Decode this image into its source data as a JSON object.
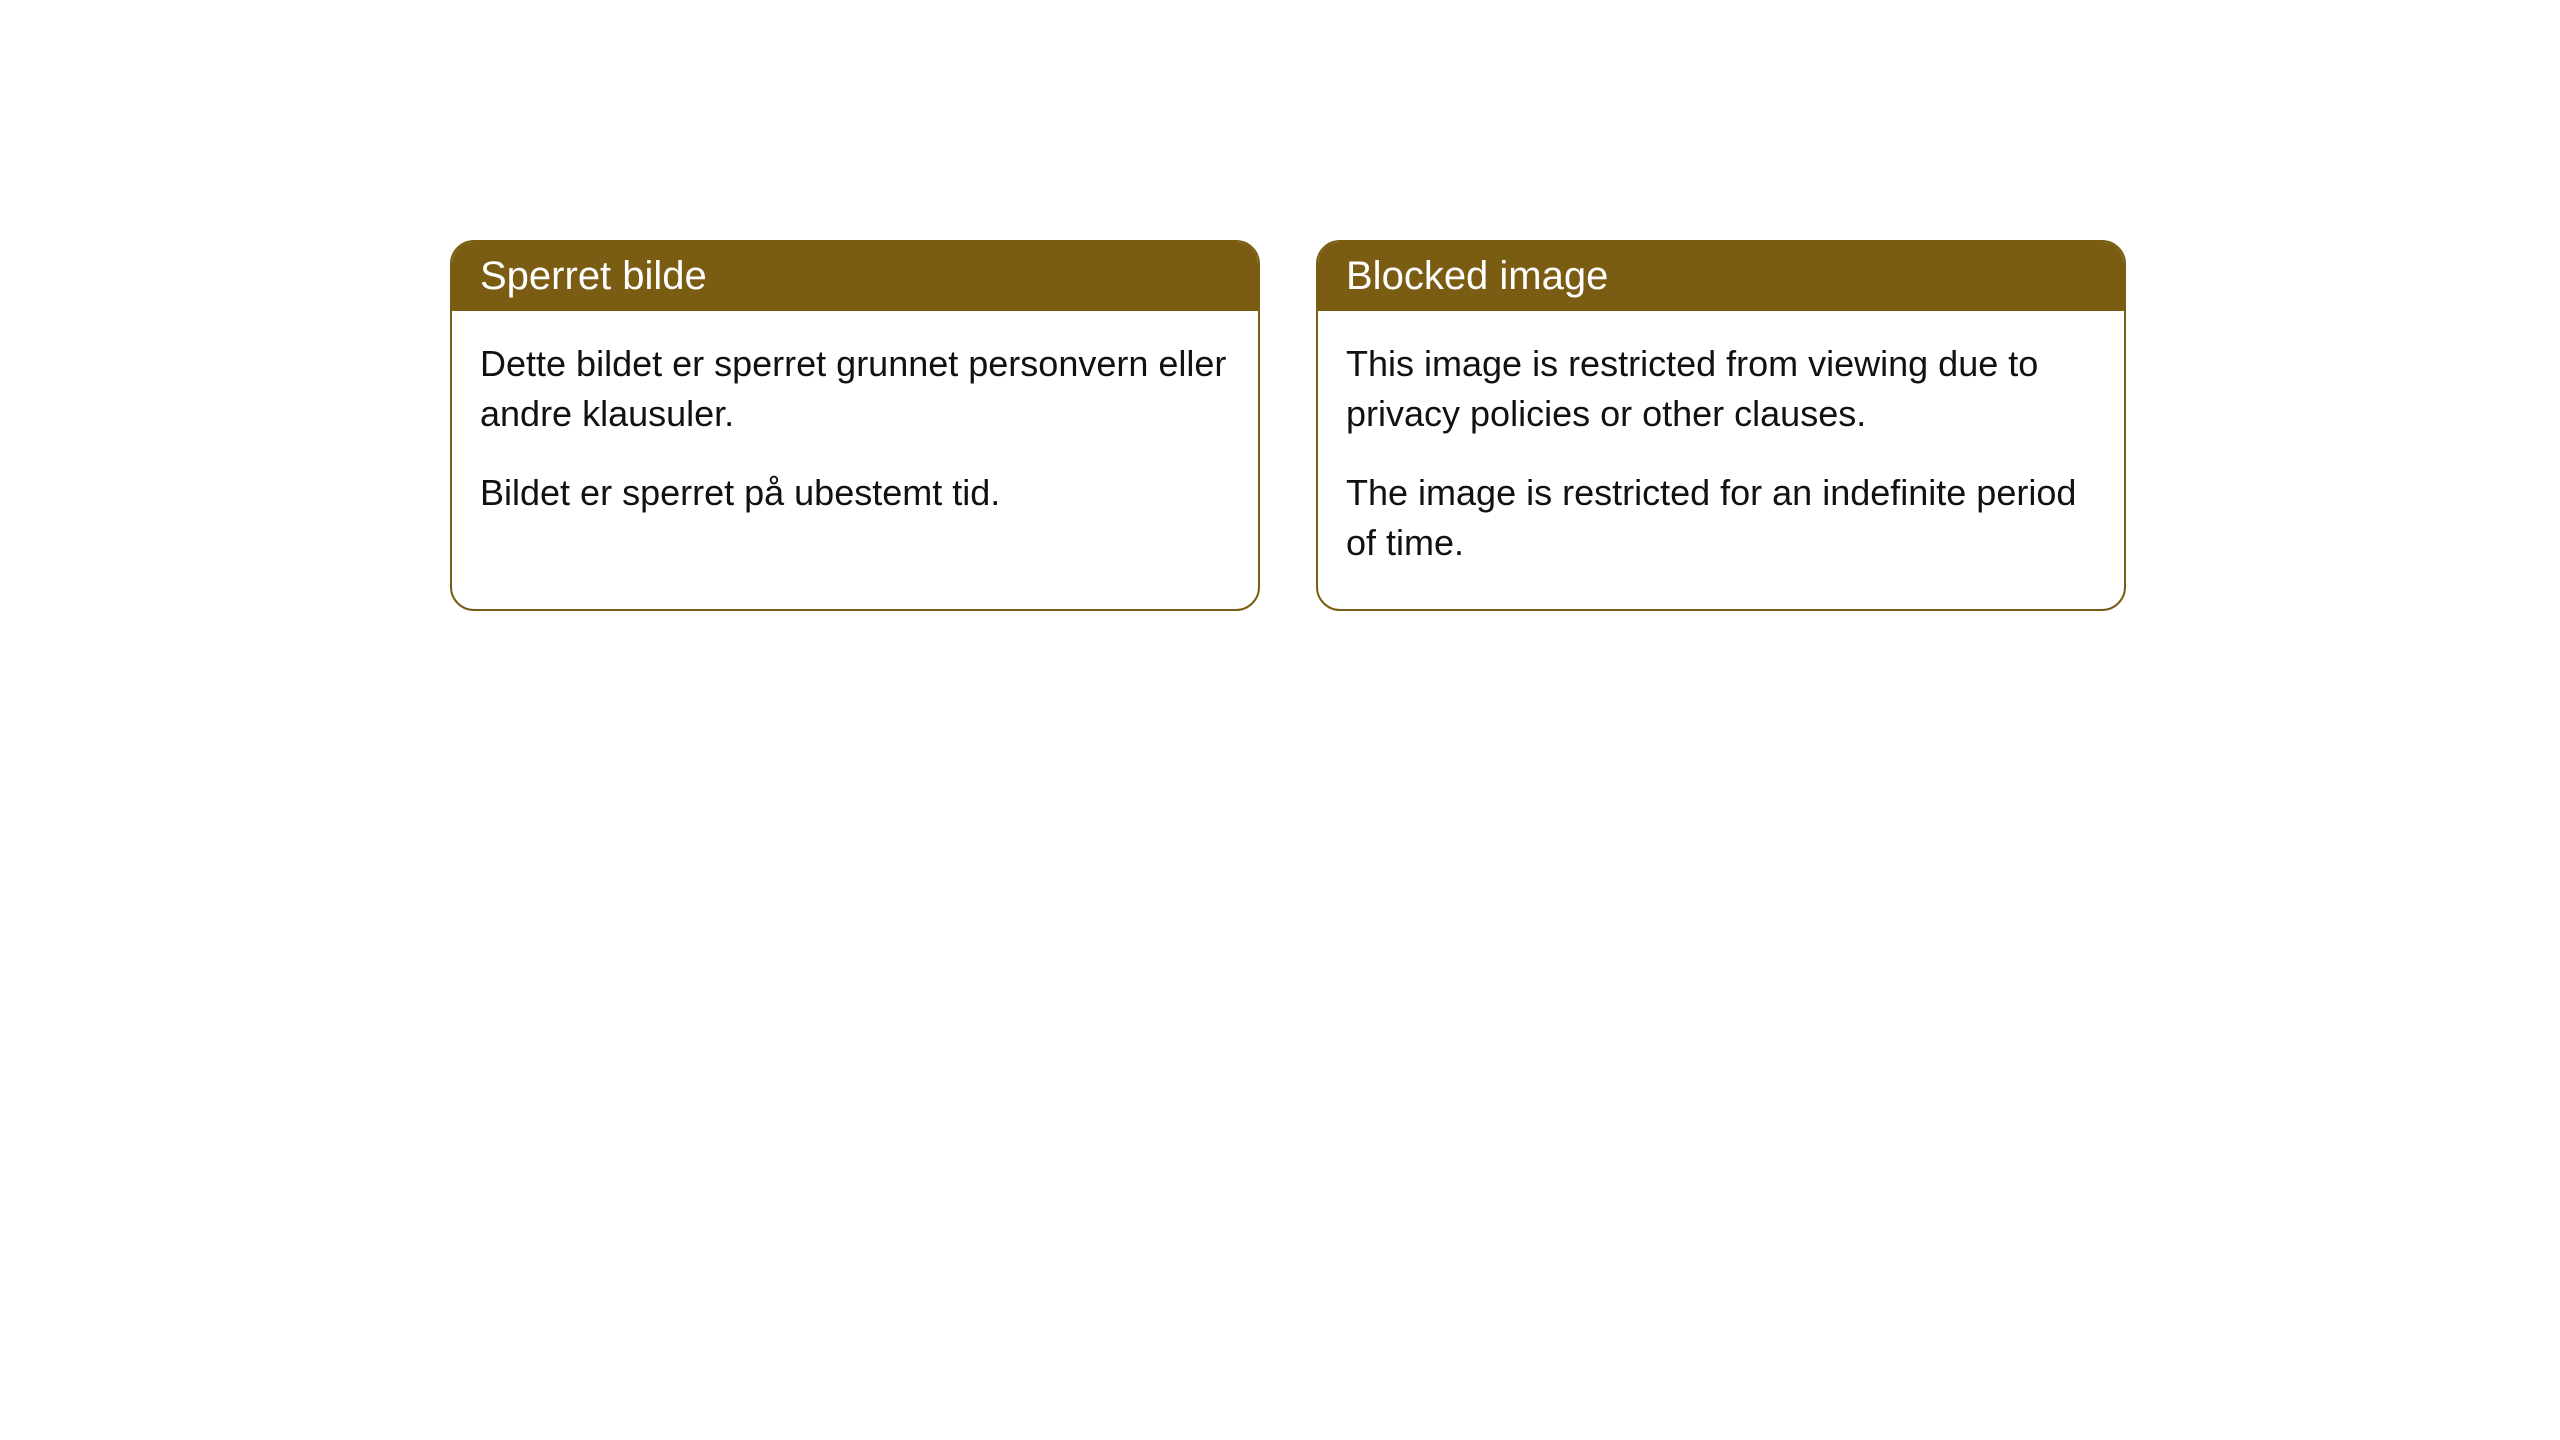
{
  "cards": [
    {
      "title": "Sperret bilde",
      "paragraph1": "Dette bildet er sperret grunnet personvern eller andre klausuler.",
      "paragraph2": "Bildet er sperret på ubestemt tid."
    },
    {
      "title": "Blocked image",
      "paragraph1": "This image is restricted from viewing due to privacy policies or other clauses.",
      "paragraph2": "The image is restricted for an indefinite period of time."
    }
  ],
  "styling": {
    "header_background_color": "#7a5c12",
    "header_text_color": "#ffffff",
    "card_border_color": "#7a5c12",
    "card_background_color": "#ffffff",
    "body_text_color": "#111111",
    "body_background_color": "#ffffff",
    "border_radius": 24,
    "title_fontsize": 40,
    "body_fontsize": 36
  }
}
